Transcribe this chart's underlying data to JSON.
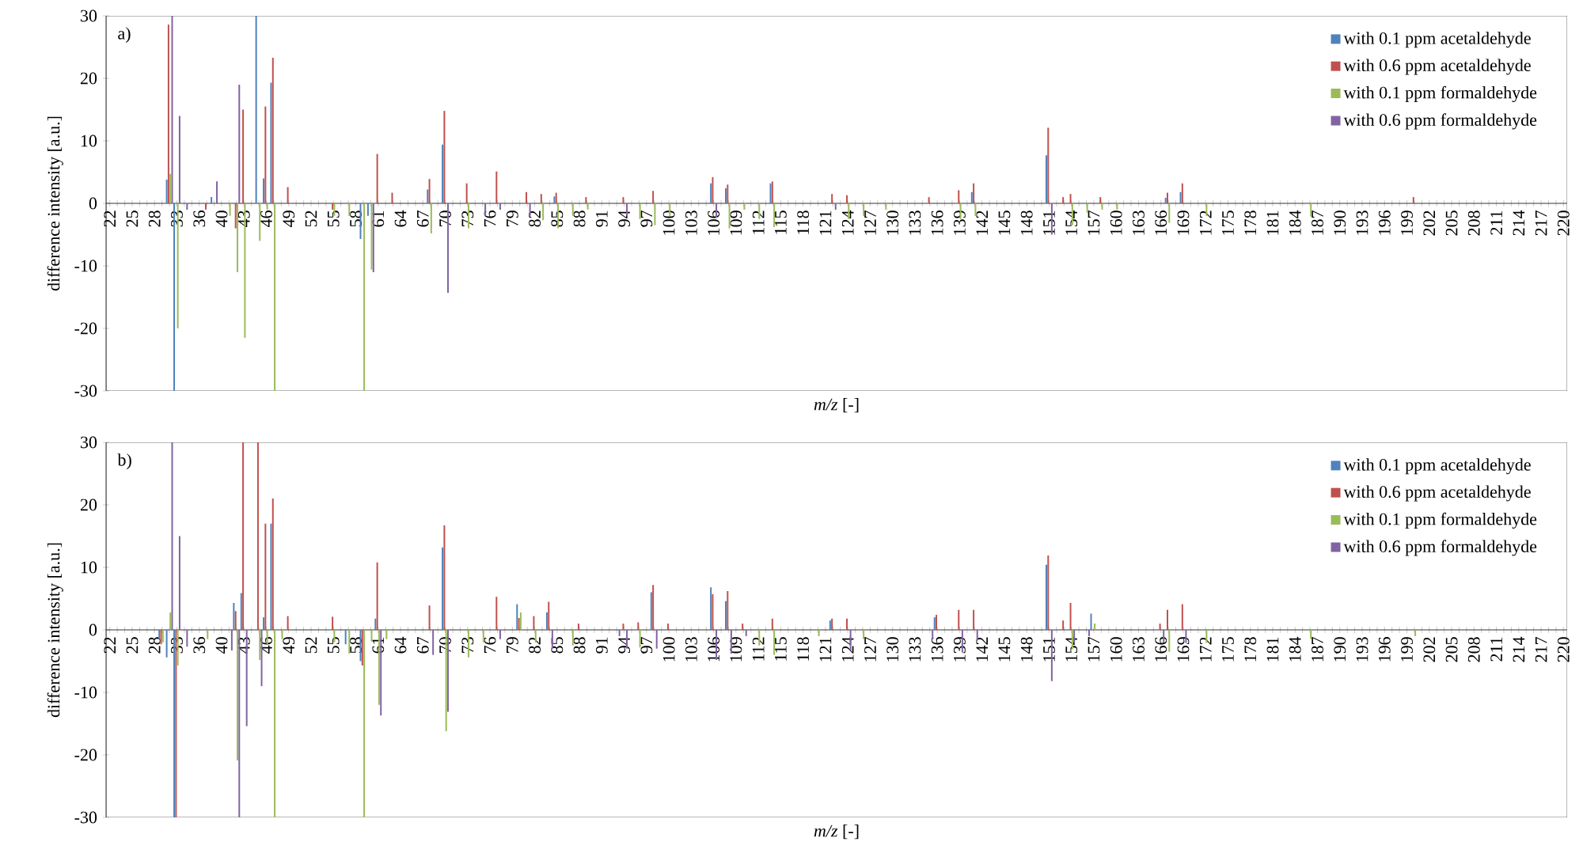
{
  "chart_data": [
    {
      "type": "bar",
      "title": "a)",
      "xlabel": "*m/z* [-]",
      "ylabel": "difference intensity [a.u.]",
      "legend": "top right",
      "ylim": [
        -30,
        30
      ],
      "yticks": [
        -30,
        -20,
        -10,
        0,
        10,
        20,
        30
      ],
      "categories": [
        "22",
        null,
        null,
        "25",
        null,
        null,
        "28",
        null,
        null,
        "33",
        null,
        null,
        "36",
        null,
        null,
        "40",
        null,
        null,
        "43",
        null,
        null,
        "46",
        null,
        null,
        "49",
        null,
        null,
        "52",
        null,
        null,
        "55",
        null,
        null,
        "58",
        null,
        null,
        "61",
        null,
        null,
        "64",
        null,
        null,
        "67",
        null,
        null,
        "70",
        null,
        null,
        "73",
        null,
        null,
        "76",
        null,
        null,
        "79",
        null,
        null,
        "82",
        null,
        null,
        "85",
        null,
        null,
        "88",
        null,
        null,
        "91",
        null,
        null,
        "94",
        null,
        null,
        "97",
        null,
        null,
        "100",
        null,
        null,
        "103",
        null,
        null,
        "106",
        null,
        null,
        "109",
        null,
        null,
        "112",
        null,
        null,
        "115",
        null,
        null,
        "118",
        null,
        null,
        "121",
        null,
        null,
        "124",
        null,
        null,
        "127",
        null,
        null,
        "130",
        null,
        null,
        "133",
        null,
        null,
        "136",
        null,
        null,
        "139",
        null,
        null,
        "142",
        null,
        null,
        "145",
        null,
        null,
        "148",
        null,
        null,
        "151",
        null,
        null,
        "154",
        null,
        null,
        "157",
        null,
        null,
        "160",
        null,
        null,
        "163",
        null,
        null,
        "166",
        null,
        null,
        "169",
        null,
        null,
        "172",
        null,
        null,
        "175",
        null,
        null,
        "178",
        null,
        null,
        "181",
        null,
        null,
        "184",
        null,
        null,
        "187",
        null,
        null,
        "190",
        null,
        null,
        "193",
        null,
        null,
        "196",
        null,
        null,
        "199",
        null,
        null,
        "202",
        null,
        null,
        "205",
        null,
        null,
        "208",
        null,
        null,
        "211",
        null,
        null,
        "214",
        null,
        null,
        "217",
        null,
        null,
        "220"
      ],
      "series": [
        {
          "name": "with 0.1 ppm acetaldehyde",
          "color": "#4f81bd",
          "values": [
            0,
            0,
            0,
            0,
            0,
            0,
            0,
            0,
            3.8,
            -30,
            0,
            0,
            0,
            0,
            1,
            0,
            0,
            0,
            0,
            0,
            30,
            4,
            19.3,
            0,
            0,
            0,
            0,
            0,
            0,
            0,
            0,
            0,
            0,
            0,
            -5.7,
            -2,
            0,
            0,
            0,
            0,
            0,
            0,
            0,
            2.2,
            0,
            9.4,
            0,
            0,
            0,
            0,
            0,
            0,
            0,
            0,
            0,
            0,
            0,
            0,
            0,
            0,
            1.1,
            0,
            0,
            0,
            0,
            0,
            0,
            0,
            0,
            0,
            0,
            0,
            0,
            0,
            0,
            0,
            0,
            0,
            0,
            0,
            0,
            3.2,
            0,
            2.4,
            0,
            0,
            0,
            0,
            0,
            3.2,
            0,
            0,
            0,
            0,
            0,
            0,
            0,
            0,
            0,
            0,
            0,
            0,
            0,
            0,
            0,
            0,
            0,
            0,
            0,
            0,
            0,
            0,
            0,
            0,
            0,
            0,
            1.8,
            0,
            0,
            0,
            0,
            0,
            0,
            0,
            0,
            0,
            7.7,
            0,
            0,
            0,
            0,
            0,
            0,
            0,
            0,
            0,
            0,
            0,
            0,
            0,
            0,
            0,
            0.9,
            0,
            1.8,
            0,
            0,
            0,
            0,
            0,
            0,
            0,
            0,
            0,
            0,
            0,
            0,
            0,
            0,
            0,
            0,
            0,
            0,
            0,
            0,
            0,
            0,
            0,
            0,
            0,
            0,
            0,
            0,
            0,
            0,
            0,
            0,
            0,
            0,
            0,
            0,
            0,
            0,
            0,
            0,
            0,
            0,
            0,
            0,
            0,
            0,
            0,
            0,
            0,
            0,
            0
          ]
        },
        {
          "name": "with 0.6 ppm acetaldehyde",
          "color": "#c0504d",
          "values": [
            0,
            0,
            0,
            0,
            0,
            0,
            0,
            0,
            28.6,
            0,
            0,
            0,
            0,
            -1,
            0,
            0,
            0,
            -4,
            15,
            0,
            0,
            15.5,
            23.3,
            0,
            2.6,
            0,
            0,
            0,
            0,
            0,
            -1,
            0,
            0,
            0,
            0,
            0,
            7.9,
            0,
            1.7,
            0,
            0,
            0,
            0,
            3.9,
            0,
            14.8,
            0,
            0,
            3.2,
            0,
            0,
            0,
            5.1,
            0,
            0,
            0,
            1.8,
            0,
            1.5,
            0,
            1.7,
            0,
            0,
            0,
            1,
            0,
            0,
            0,
            0,
            1,
            0,
            0,
            0,
            2,
            0,
            0,
            0,
            0,
            0,
            0,
            0,
            4.2,
            0,
            3,
            0,
            0,
            0,
            0,
            0,
            3.5,
            0,
            0,
            0,
            0,
            0,
            0,
            0,
            1.5,
            0,
            1.3,
            0,
            0,
            0,
            0,
            0,
            0,
            0,
            0,
            0,
            0,
            1,
            0,
            0,
            0,
            2.1,
            0,
            3.2,
            0,
            0,
            0,
            0,
            0,
            0,
            0,
            0,
            0,
            12.1,
            0,
            1,
            1.5,
            0,
            0,
            0,
            1,
            0,
            0,
            0,
            0,
            0,
            0,
            0,
            0,
            1.7,
            0,
            3.2,
            0,
            0,
            0,
            0,
            0,
            0,
            0,
            0,
            0,
            0,
            0,
            0,
            0,
            0,
            0,
            0,
            0,
            0,
            0,
            0,
            0,
            0,
            0,
            0,
            0,
            0,
            0,
            0,
            0,
            0,
            1,
            0,
            0,
            0,
            0,
            0,
            0,
            0,
            0,
            0,
            0,
            0,
            0,
            0,
            0,
            0,
            0,
            0,
            0,
            0,
            0
          ]
        },
        {
          "name": "with 0.1 ppm formaldehyde",
          "color": "#9bbb59",
          "values": [
            0,
            0,
            0,
            0,
            0,
            0,
            0,
            0,
            4.7,
            -20,
            0,
            0,
            0,
            0,
            0,
            0,
            -2,
            -11,
            -21.5,
            0,
            -6,
            -1,
            -30,
            0,
            0,
            0,
            0,
            0,
            0,
            0,
            -2,
            0,
            -2,
            0,
            -30,
            -10.6,
            0,
            0,
            0,
            0,
            0,
            0,
            0,
            -4.8,
            0,
            0,
            0,
            0,
            -4,
            0,
            0,
            0,
            0,
            0,
            0,
            0,
            0,
            0,
            -2.7,
            0,
            -4,
            0,
            -2,
            0,
            -1,
            0,
            0,
            0,
            0,
            0,
            0,
            -2.5,
            0,
            -3.5,
            0,
            -2,
            0,
            0,
            0,
            0,
            0,
            0,
            0,
            -4,
            0,
            -1,
            0,
            -2.5,
            0,
            -3.8,
            0,
            0,
            0,
            0,
            0,
            0,
            0,
            0,
            0,
            -2.5,
            0,
            -2,
            0,
            0,
            -1,
            0,
            0,
            0,
            0,
            0,
            0,
            0,
            0,
            0,
            -2.5,
            0,
            -2,
            0,
            0,
            0,
            0,
            0,
            0,
            0,
            0,
            0,
            0,
            0,
            0,
            -3.5,
            0,
            -1.5,
            0,
            -1,
            0,
            -1,
            0,
            0,
            0,
            0,
            0,
            0,
            -3.1,
            0,
            0,
            0,
            0,
            -2,
            0,
            0,
            0,
            0,
            0,
            0,
            0,
            0,
            0,
            0,
            0,
            0,
            0,
            -2.1,
            0,
            0,
            0,
            0,
            0,
            0,
            0,
            0,
            0,
            0,
            0,
            0,
            0,
            0,
            0,
            0,
            0,
            0,
            0,
            0,
            0,
            0,
            0,
            0,
            0,
            0,
            0,
            0,
            0,
            0,
            0,
            0,
            0,
            0
          ]
        },
        {
          "name": "with 0.6 ppm formaldehyde",
          "color": "#8064a2",
          "values": [
            0,
            0,
            0,
            0,
            0,
            0,
            0,
            0,
            30,
            14,
            -1,
            0,
            0,
            0,
            3.5,
            0,
            0,
            19,
            0,
            0,
            0,
            0,
            0,
            0,
            0,
            0,
            0,
            0,
            0,
            0,
            0,
            0,
            0,
            0,
            0,
            -11,
            0,
            0,
            0,
            0,
            0,
            0,
            0,
            0,
            0,
            -14.3,
            0,
            0,
            0,
            0,
            -2,
            0,
            -1,
            0,
            0,
            0,
            -2,
            0,
            0,
            0,
            0,
            0,
            0,
            0,
            0,
            0,
            0,
            0,
            0,
            -2,
            0,
            0,
            0,
            0,
            0,
            0,
            0,
            0,
            0,
            0,
            0,
            -2.3,
            0,
            0,
            0,
            0,
            0,
            0,
            0,
            0,
            0,
            0,
            0,
            0,
            0,
            0,
            0,
            -1,
            0,
            0,
            0,
            0,
            0,
            0,
            0,
            0,
            0,
            0,
            0,
            0,
            0,
            0,
            0,
            0,
            0,
            0,
            0,
            0,
            0,
            0,
            0,
            0,
            0,
            0,
            0,
            0,
            -5,
            0,
            0,
            0,
            0,
            0,
            0,
            0,
            0,
            0,
            0,
            0,
            0,
            0,
            0,
            0,
            0,
            0,
            0,
            0,
            0,
            0,
            0,
            0,
            0,
            0,
            0,
            0,
            0,
            0,
            0,
            0,
            0,
            0,
            0,
            0,
            0,
            0,
            0,
            0,
            0,
            0,
            0,
            0,
            0,
            0,
            0,
            0,
            0,
            0,
            0,
            0,
            0,
            0,
            0,
            0,
            0,
            0,
            0,
            0,
            0,
            0,
            0,
            0,
            0,
            0,
            0,
            0,
            0,
            0
          ]
        }
      ]
    },
    {
      "type": "bar",
      "title": "b)",
      "xlabel": "*m/z* [-]",
      "ylabel": "difference intensity [a.u.]",
      "legend": "top right",
      "ylim": [
        -30,
        30
      ],
      "yticks": [
        -30,
        -20,
        -10,
        0,
        10,
        20,
        30
      ],
      "categories": [
        "22",
        null,
        null,
        "25",
        null,
        null,
        "28",
        null,
        null,
        "33",
        null,
        null,
        "36",
        null,
        null,
        "40",
        null,
        null,
        "43",
        null,
        null,
        "46",
        null,
        null,
        "49",
        null,
        null,
        "52",
        null,
        null,
        "55",
        null,
        null,
        "58",
        null,
        null,
        "61",
        null,
        null,
        "64",
        null,
        null,
        "67",
        null,
        null,
        "70",
        null,
        null,
        "73",
        null,
        null,
        "76",
        null,
        null,
        "79",
        null,
        null,
        "82",
        null,
        null,
        "85",
        null,
        null,
        "88",
        null,
        null,
        "91",
        null,
        null,
        "94",
        null,
        null,
        "97",
        null,
        null,
        "100",
        null,
        null,
        "103",
        null,
        null,
        "106",
        null,
        null,
        "109",
        null,
        null,
        "112",
        null,
        null,
        "115",
        null,
        null,
        "118",
        null,
        null,
        "121",
        null,
        null,
        "124",
        null,
        null,
        "127",
        null,
        null,
        "130",
        null,
        null,
        "133",
        null,
        null,
        "136",
        null,
        null,
        "139",
        null,
        null,
        "142",
        null,
        null,
        "145",
        null,
        null,
        "148",
        null,
        null,
        "151",
        null,
        null,
        "154",
        null,
        null,
        "157",
        null,
        null,
        "160",
        null,
        null,
        "163",
        null,
        null,
        "166",
        null,
        null,
        "169",
        null,
        null,
        "172",
        null,
        null,
        "175",
        null,
        null,
        "178",
        null,
        null,
        "181",
        null,
        null,
        "184",
        null,
        null,
        "187",
        null,
        null,
        "190",
        null,
        null,
        "193",
        null,
        null,
        "196",
        null,
        null,
        "199",
        null,
        null,
        "202",
        null,
        null,
        "205",
        null,
        null,
        "208",
        null,
        null,
        "211",
        null,
        null,
        "214",
        null,
        null,
        "217",
        null,
        null,
        "220"
      ],
      "series": [
        {
          "name": "with 0.1 ppm acetaldehyde",
          "color": "#4f81bd",
          "values": [
            0,
            0,
            0,
            0,
            0,
            0,
            0,
            -1.5,
            -4.4,
            -30,
            0,
            0,
            0,
            0,
            0,
            0,
            0,
            4.3,
            5.9,
            0,
            0,
            2,
            17,
            0,
            0,
            0,
            0,
            0,
            0,
            0,
            0,
            0,
            -2.3,
            0,
            -5,
            0,
            1.8,
            0,
            0,
            0,
            0,
            0,
            0,
            0,
            0,
            13.2,
            0,
            0,
            0,
            0,
            0,
            0,
            0,
            0,
            0,
            4.1,
            0,
            0,
            0,
            2.8,
            0,
            0,
            0,
            0,
            0,
            0,
            0,
            0,
            0,
            0,
            0,
            0,
            0,
            6,
            0,
            0,
            0,
            0,
            0,
            0,
            0,
            6.8,
            0,
            4.6,
            0,
            0,
            0,
            0,
            0,
            0,
            0,
            0,
            0,
            0,
            0,
            0,
            0,
            1.5,
            0,
            0,
            0,
            0,
            0,
            0,
            0,
            0,
            0,
            0,
            0,
            0,
            0,
            2,
            0,
            0,
            0,
            0,
            0,
            0,
            0,
            0,
            0,
            0,
            0,
            0,
            0,
            0,
            10.4,
            0,
            0,
            0,
            0,
            0,
            2.6,
            0,
            0,
            0,
            0,
            0,
            0,
            0,
            0,
            0,
            0,
            0,
            0,
            0,
            0,
            0,
            0,
            0,
            0,
            0,
            0,
            0,
            0,
            0,
            0,
            0,
            0,
            0,
            0,
            0,
            0,
            0,
            0,
            0,
            0,
            0,
            0,
            0,
            0,
            0,
            0,
            0,
            0,
            0,
            0,
            0,
            0,
            0,
            0,
            0,
            0,
            0,
            0,
            0,
            0,
            0,
            0,
            0,
            0,
            0,
            0,
            0,
            0,
            0
          ]
        },
        {
          "name": "with 0.6 ppm acetaldehyde",
          "color": "#c0504d",
          "values": [
            0,
            0,
            0,
            0,
            0,
            0,
            0,
            -2.3,
            0,
            -30,
            0,
            0,
            0,
            0,
            0,
            0,
            0,
            3,
            30,
            0,
            30,
            17,
            21,
            0,
            2.2,
            0,
            0,
            0,
            0,
            0,
            2.1,
            0,
            0,
            0,
            -5.7,
            0,
            10.8,
            0,
            0,
            0,
            0,
            0,
            0,
            3.9,
            0,
            16.7,
            0,
            0,
            0,
            0,
            0,
            0,
            5.3,
            0,
            0,
            1.9,
            0,
            2.2,
            0,
            4.5,
            0,
            0,
            0,
            1,
            0,
            0,
            0,
            0,
            0,
            1,
            0,
            1.2,
            0,
            7.2,
            0,
            1,
            0,
            0,
            0,
            0,
            0,
            5.7,
            0,
            6.2,
            0,
            1,
            0,
            0,
            0,
            1.8,
            0,
            0,
            0,
            0,
            0,
            0,
            0,
            1.8,
            0,
            1.8,
            0,
            0,
            0,
            0,
            0,
            0,
            0,
            0,
            0,
            0,
            0,
            2.4,
            0,
            0,
            3.2,
            0,
            3.2,
            0,
            0,
            0,
            0,
            0,
            0,
            0,
            0,
            0,
            11.9,
            0,
            1.5,
            4.3,
            0,
            0,
            0,
            0,
            0,
            0,
            0,
            0,
            0,
            0,
            0,
            1,
            3.2,
            0,
            4.1,
            0,
            0,
            0,
            0,
            0,
            0,
            0,
            0,
            0,
            0,
            0,
            0,
            0,
            0,
            0,
            0,
            0,
            0,
            0,
            0,
            0,
            0,
            0,
            0,
            0,
            0,
            0,
            0,
            0,
            0,
            0,
            0,
            0,
            0,
            0,
            0,
            0,
            0,
            0,
            0,
            0,
            0,
            0,
            0,
            0,
            0,
            0,
            0,
            0,
            0,
            0
          ]
        },
        {
          "name": "with 0.1 ppm formaldehyde",
          "color": "#9bbb59",
          "values": [
            0,
            0,
            0,
            0,
            0,
            0,
            0,
            -2,
            2.8,
            -5.7,
            0,
            0,
            0,
            -1.5,
            0,
            0,
            0,
            -20.9,
            0,
            0,
            -4.8,
            -2.3,
            -30,
            -1.5,
            0,
            0,
            0,
            0,
            0,
            0,
            -2,
            0,
            -3.8,
            0,
            -30,
            -1.9,
            -12,
            -1.5,
            0,
            0,
            0,
            0,
            0,
            0,
            0,
            -16.2,
            0,
            0,
            -4.4,
            0,
            -2,
            0,
            0,
            0,
            0,
            2.8,
            0,
            -2,
            0,
            0,
            0,
            0,
            -2.5,
            0,
            0,
            0,
            0,
            0,
            0,
            0,
            0,
            -2.8,
            0,
            0,
            0,
            0,
            0,
            0,
            0,
            0,
            0,
            0,
            0,
            0,
            0,
            0,
            0,
            -2.5,
            0,
            -4,
            0,
            0,
            0,
            0,
            0,
            -1,
            0,
            0,
            0,
            0,
            0,
            -1.5,
            0,
            0,
            0,
            0,
            0,
            0,
            0,
            0,
            0,
            0,
            0,
            0,
            0,
            0,
            0,
            0,
            0,
            0,
            0,
            0,
            0,
            0,
            0,
            0,
            0,
            0,
            0,
            -3.1,
            0,
            0,
            1,
            0,
            0,
            0,
            0,
            0,
            0,
            0,
            0,
            0,
            -3.5,
            0,
            0,
            0,
            0,
            -2.1,
            0,
            0,
            0,
            0,
            0,
            0,
            0,
            0,
            0,
            0,
            0,
            0,
            0,
            -1.5,
            0,
            0,
            0,
            0,
            0,
            0,
            0,
            0,
            0,
            0,
            0,
            0,
            0,
            -1,
            0,
            0,
            0,
            0,
            0,
            0,
            0,
            0,
            0,
            0,
            0,
            0,
            0,
            0,
            0,
            0,
            0,
            0,
            0,
            0
          ]
        },
        {
          "name": "with 0.6 ppm formaldehyde",
          "color": "#8064a2",
          "values": [
            0,
            0,
            0,
            0,
            0,
            0,
            0,
            0,
            30,
            15,
            -2.7,
            0,
            0,
            0,
            0,
            0,
            -3.3,
            -30,
            -15.4,
            0,
            -9,
            0,
            0,
            0,
            0,
            0,
            0,
            0,
            0,
            0,
            0,
            0,
            0,
            0,
            0,
            0,
            -13.7,
            0,
            0,
            0,
            0,
            0,
            0,
            -4,
            0,
            -13.1,
            0,
            0,
            0,
            0,
            0,
            0,
            -1.5,
            0,
            0,
            0,
            0,
            0,
            0,
            -3,
            0,
            0,
            0,
            0,
            0,
            0,
            0,
            0,
            -1,
            -3,
            0,
            0,
            0,
            -3,
            0,
            0,
            0,
            0,
            0,
            0,
            0,
            -4.8,
            0,
            -3.8,
            0,
            -1,
            0,
            0,
            0,
            0,
            0,
            0,
            0,
            0,
            0,
            0,
            0,
            0,
            0,
            -3.3,
            0,
            0,
            0,
            0,
            0,
            0,
            0,
            0,
            0,
            0,
            -1.5,
            0,
            0,
            0,
            -3.6,
            0,
            -1.7,
            0,
            0,
            0,
            0,
            0,
            0,
            0,
            0,
            0,
            -8.2,
            0,
            0,
            -2,
            0,
            -1,
            0,
            0,
            0,
            0,
            0,
            0,
            0,
            0,
            0,
            -2,
            0,
            0,
            -2.1,
            0,
            0,
            0,
            0,
            0,
            0,
            0,
            0,
            0,
            0,
            0,
            0,
            0,
            0,
            0,
            0,
            0,
            0,
            0,
            0,
            0,
            0,
            0,
            0,
            0,
            0,
            0,
            0,
            0,
            0,
            0,
            0,
            0,
            0,
            0,
            0,
            0,
            0,
            0,
            0,
            0,
            0,
            0,
            0,
            0,
            0,
            0,
            0,
            0,
            0,
            0
          ]
        }
      ]
    }
  ]
}
